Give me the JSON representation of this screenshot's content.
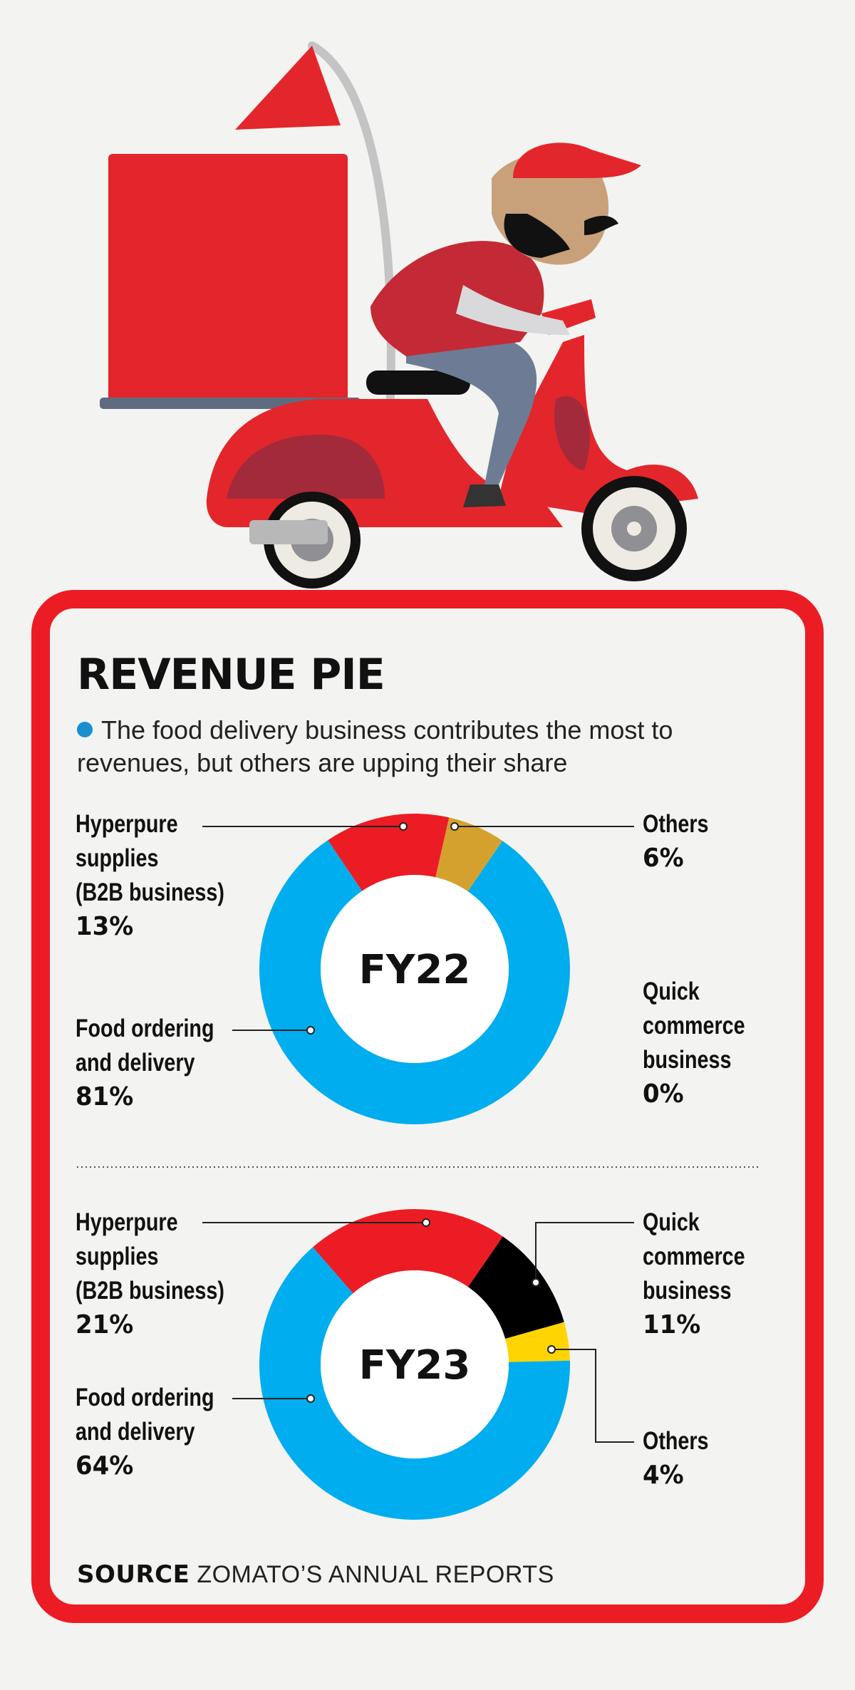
{
  "title": "REVENUE PIE",
  "subtitle": "The food delivery business contributes the most to revenues, but others are upping their share",
  "source_label": "SOURCE",
  "source_text": "ZOMATO’S ANNUAL REPORTS",
  "colors": {
    "food": "#00adef",
    "hyperpure": "#ec1c24",
    "quick": "#000000",
    "others_fy22": "#d4a12e",
    "others_fy23": "#ffd400",
    "frame": "#ec1c24"
  },
  "chart_data": [
    {
      "type": "pie",
      "center_label": "FY22",
      "series": [
        {
          "name": "Food ordering and delivery",
          "value": 81,
          "pct_text": "81%"
        },
        {
          "name": "Hyperpure supplies (B2B business)",
          "value": 13,
          "pct_text": "13%"
        },
        {
          "name": "Others",
          "value": 6,
          "pct_text": "6%"
        },
        {
          "name": "Quick commerce business",
          "value": 0,
          "pct_text": "0%"
        }
      ]
    },
    {
      "type": "pie",
      "center_label": "FY23",
      "series": [
        {
          "name": "Food ordering and delivery",
          "value": 64,
          "pct_text": "64%"
        },
        {
          "name": "Hyperpure supplies (B2B business)",
          "value": 21,
          "pct_text": "21%"
        },
        {
          "name": "Quick commerce business",
          "value": 11,
          "pct_text": "11%"
        },
        {
          "name": "Others",
          "value": 4,
          "pct_text": "4%"
        }
      ]
    }
  ],
  "labels": {
    "fy22": {
      "hyperpure": {
        "l1": "Hyperpure",
        "l2": "supplies",
        "l3": "(B2B business)",
        "pct": "13%"
      },
      "others": {
        "l1": "Others",
        "pct": "6%"
      },
      "quick": {
        "l1": "Quick",
        "l2": "commerce",
        "l3": "business",
        "pct": "0%"
      },
      "food": {
        "l1": "Food ordering",
        "l2": "and delivery",
        "pct": "81%"
      }
    },
    "fy23": {
      "hyperpure": {
        "l1": "Hyperpure",
        "l2": "supplies",
        "l3": "(B2B business)",
        "pct": "21%"
      },
      "quick": {
        "l1": "Quick",
        "l2": "commerce",
        "l3": "business",
        "pct": "11%"
      },
      "food": {
        "l1": "Food ordering",
        "l2": "and delivery",
        "pct": "64%"
      },
      "others": {
        "l1": "Others",
        "pct": "4%"
      }
    }
  }
}
